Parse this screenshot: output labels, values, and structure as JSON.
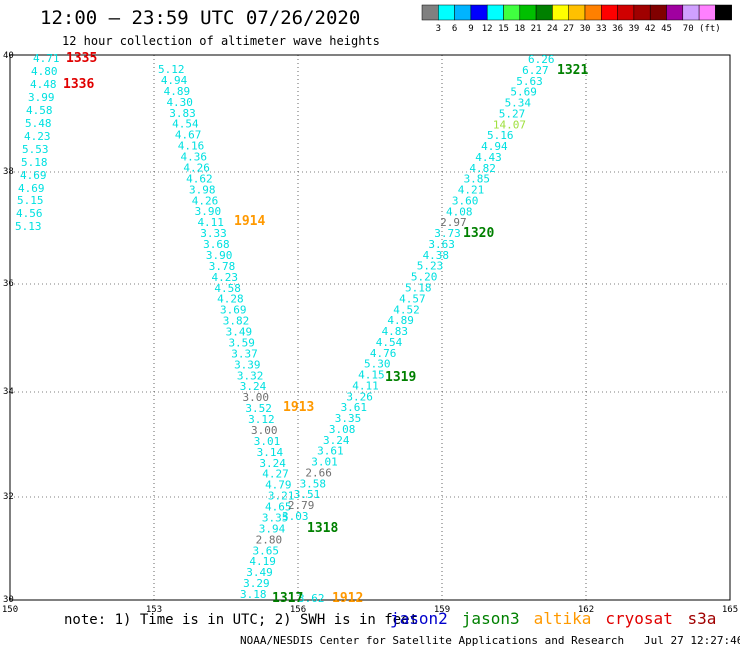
{
  "title": "12:00 – 23:59 UTC 07/26/2020",
  "subtitle": "12 hour collection of altimeter wave heights",
  "colorbar": {
    "colors": [
      "#808080",
      "#00ffff",
      "#00b4ff",
      "#0000ff",
      "#00ffff",
      "#40ff40",
      "#00c000",
      "#008000",
      "#ffff00",
      "#ffc000",
      "#ff8000",
      "#ff0000",
      "#d00000",
      "#a00000",
      "#800000",
      "#a000a0",
      "#d0a0ff",
      "#ff80ff",
      "#000000"
    ],
    "ticks": [
      "3",
      "6",
      "9",
      "12",
      "15",
      "18",
      "21",
      "24",
      "27",
      "30",
      "33",
      "36",
      "39",
      "42",
      "45",
      "70 (ft)"
    ]
  },
  "axes": {
    "lon_labels": [
      "150",
      "153",
      "156",
      "159",
      "162",
      "165"
    ],
    "lat_labels": [
      "40",
      "38",
      "36",
      "34",
      "32",
      "30"
    ]
  },
  "tracks": [
    {
      "name": "1335",
      "color": "#e00000",
      "values": [
        "4.71",
        "4.80",
        "4.48",
        "3.99",
        "4.58",
        "5.48",
        "4.23",
        "5.53",
        "5.18",
        "4.69",
        "4.69",
        "5.15",
        "4.56",
        "5.13"
      ]
    },
    {
      "name": "1336",
      "color": "#e00000",
      "values": []
    },
    {
      "name": "1914",
      "color": "#ff9900",
      "values": [
        "5.12",
        "4.94",
        "4.89",
        "4.30",
        "3.83",
        "4.54",
        "4.67",
        "4.16",
        "4.36",
        "4.26",
        "4.62",
        "3.98",
        "4.26",
        "3.90",
        "4.11",
        "3.33",
        "3.68",
        "3.90",
        "3.78",
        "4.23",
        "4.58",
        "4.28",
        "3.69",
        "3.82",
        "3.49",
        "3.59",
        "3.37",
        "3.39",
        "3.32",
        "3.24",
        "3.00",
        "3.52",
        "3.12",
        "3.00",
        "3.01",
        "3.14",
        "3.24",
        "4.27",
        "4.79",
        "3.21",
        "4.65",
        "3.35",
        "3.94",
        "2.80",
        "3.65",
        "4.19",
        "3.49",
        "3.29",
        "3.18"
      ]
    },
    {
      "name": "1321",
      "color": "#008000",
      "values": [
        "6.26",
        "6.27",
        "5.63",
        "5.69",
        "5.34",
        "5.27",
        "14.07",
        "5.16",
        "4.94",
        "4.43",
        "4.82",
        "3.85",
        "4.21",
        "3.60",
        "4.08",
        "2.97",
        "3.73",
        "3.63",
        "4.38",
        "5.23",
        "5.20",
        "5.18",
        "4.57",
        "4.52",
        "4.89",
        "4.83",
        "4.54",
        "4.76",
        "5.30",
        "4.15",
        "4.11",
        "3.26",
        "3.61",
        "3.35",
        "3.08",
        "3.24",
        "3.61",
        "3.01",
        "2.66",
        "3.58",
        "3.51",
        "2.79",
        "3.03"
      ]
    },
    {
      "name": "1320",
      "color": "#008000",
      "values": []
    },
    {
      "name": "1319",
      "color": "#008000",
      "values": []
    },
    {
      "name": "1318",
      "color": "#008000",
      "values": []
    },
    {
      "name": "1317",
      "color": "#008000",
      "values": [
        "3.62"
      ]
    },
    {
      "name": "1913",
      "color": "#ff9900",
      "values": []
    },
    {
      "name": "1912",
      "color": "#ff9900",
      "values": []
    }
  ],
  "legend": [
    {
      "label": "jason2",
      "color": "#0000cc"
    },
    {
      "label": "jason3",
      "color": "#008000"
    },
    {
      "label": "altika",
      "color": "#ff9900"
    },
    {
      "label": "cryosat",
      "color": "#e00000"
    },
    {
      "label": "s3a",
      "color": "#a00000"
    }
  ],
  "note": "note: 1) Time is in UTC; 2) SWH is in feet",
  "footer": "NOAA/NESDIS Center for Satellite Applications and Research   Jul 27 12:27:46 UTC 2020"
}
